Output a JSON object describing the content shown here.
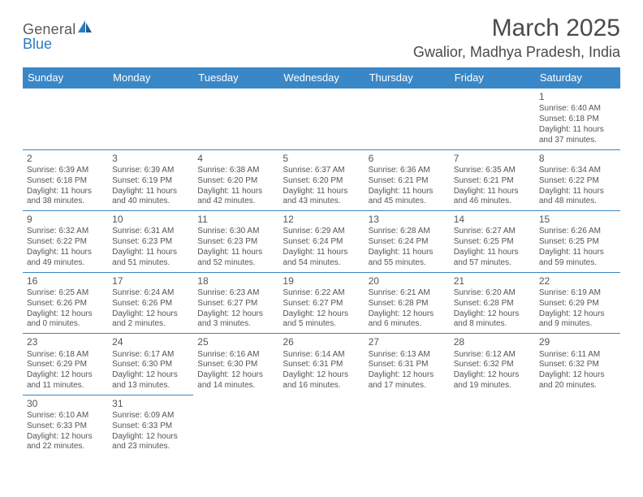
{
  "logo": {
    "text1": "General",
    "text2": "Blue"
  },
  "title": {
    "month": "March 2025",
    "location": "Gwalior, Madhya Pradesh, India"
  },
  "colors": {
    "header_bg": "#3a87c7",
    "header_text": "#ffffff",
    "border": "#3a87c7",
    "body_text": "#555555",
    "logo_gray": "#5a5a5a",
    "logo_blue": "#2b7bbf"
  },
  "weekdays": [
    "Sunday",
    "Monday",
    "Tuesday",
    "Wednesday",
    "Thursday",
    "Friday",
    "Saturday"
  ],
  "weeks": [
    [
      null,
      null,
      null,
      null,
      null,
      null,
      {
        "n": "1",
        "sr": "Sunrise: 6:40 AM",
        "ss": "Sunset: 6:18 PM",
        "dl": "Daylight: 11 hours and 37 minutes."
      }
    ],
    [
      {
        "n": "2",
        "sr": "Sunrise: 6:39 AM",
        "ss": "Sunset: 6:18 PM",
        "dl": "Daylight: 11 hours and 38 minutes."
      },
      {
        "n": "3",
        "sr": "Sunrise: 6:39 AM",
        "ss": "Sunset: 6:19 PM",
        "dl": "Daylight: 11 hours and 40 minutes."
      },
      {
        "n": "4",
        "sr": "Sunrise: 6:38 AM",
        "ss": "Sunset: 6:20 PM",
        "dl": "Daylight: 11 hours and 42 minutes."
      },
      {
        "n": "5",
        "sr": "Sunrise: 6:37 AM",
        "ss": "Sunset: 6:20 PM",
        "dl": "Daylight: 11 hours and 43 minutes."
      },
      {
        "n": "6",
        "sr": "Sunrise: 6:36 AM",
        "ss": "Sunset: 6:21 PM",
        "dl": "Daylight: 11 hours and 45 minutes."
      },
      {
        "n": "7",
        "sr": "Sunrise: 6:35 AM",
        "ss": "Sunset: 6:21 PM",
        "dl": "Daylight: 11 hours and 46 minutes."
      },
      {
        "n": "8",
        "sr": "Sunrise: 6:34 AM",
        "ss": "Sunset: 6:22 PM",
        "dl": "Daylight: 11 hours and 48 minutes."
      }
    ],
    [
      {
        "n": "9",
        "sr": "Sunrise: 6:32 AM",
        "ss": "Sunset: 6:22 PM",
        "dl": "Daylight: 11 hours and 49 minutes."
      },
      {
        "n": "10",
        "sr": "Sunrise: 6:31 AM",
        "ss": "Sunset: 6:23 PM",
        "dl": "Daylight: 11 hours and 51 minutes."
      },
      {
        "n": "11",
        "sr": "Sunrise: 6:30 AM",
        "ss": "Sunset: 6:23 PM",
        "dl": "Daylight: 11 hours and 52 minutes."
      },
      {
        "n": "12",
        "sr": "Sunrise: 6:29 AM",
        "ss": "Sunset: 6:24 PM",
        "dl": "Daylight: 11 hours and 54 minutes."
      },
      {
        "n": "13",
        "sr": "Sunrise: 6:28 AM",
        "ss": "Sunset: 6:24 PM",
        "dl": "Daylight: 11 hours and 55 minutes."
      },
      {
        "n": "14",
        "sr": "Sunrise: 6:27 AM",
        "ss": "Sunset: 6:25 PM",
        "dl": "Daylight: 11 hours and 57 minutes."
      },
      {
        "n": "15",
        "sr": "Sunrise: 6:26 AM",
        "ss": "Sunset: 6:25 PM",
        "dl": "Daylight: 11 hours and 59 minutes."
      }
    ],
    [
      {
        "n": "16",
        "sr": "Sunrise: 6:25 AM",
        "ss": "Sunset: 6:26 PM",
        "dl": "Daylight: 12 hours and 0 minutes."
      },
      {
        "n": "17",
        "sr": "Sunrise: 6:24 AM",
        "ss": "Sunset: 6:26 PM",
        "dl": "Daylight: 12 hours and 2 minutes."
      },
      {
        "n": "18",
        "sr": "Sunrise: 6:23 AM",
        "ss": "Sunset: 6:27 PM",
        "dl": "Daylight: 12 hours and 3 minutes."
      },
      {
        "n": "19",
        "sr": "Sunrise: 6:22 AM",
        "ss": "Sunset: 6:27 PM",
        "dl": "Daylight: 12 hours and 5 minutes."
      },
      {
        "n": "20",
        "sr": "Sunrise: 6:21 AM",
        "ss": "Sunset: 6:28 PM",
        "dl": "Daylight: 12 hours and 6 minutes."
      },
      {
        "n": "21",
        "sr": "Sunrise: 6:20 AM",
        "ss": "Sunset: 6:28 PM",
        "dl": "Daylight: 12 hours and 8 minutes."
      },
      {
        "n": "22",
        "sr": "Sunrise: 6:19 AM",
        "ss": "Sunset: 6:29 PM",
        "dl": "Daylight: 12 hours and 9 minutes."
      }
    ],
    [
      {
        "n": "23",
        "sr": "Sunrise: 6:18 AM",
        "ss": "Sunset: 6:29 PM",
        "dl": "Daylight: 12 hours and 11 minutes."
      },
      {
        "n": "24",
        "sr": "Sunrise: 6:17 AM",
        "ss": "Sunset: 6:30 PM",
        "dl": "Daylight: 12 hours and 13 minutes."
      },
      {
        "n": "25",
        "sr": "Sunrise: 6:16 AM",
        "ss": "Sunset: 6:30 PM",
        "dl": "Daylight: 12 hours and 14 minutes."
      },
      {
        "n": "26",
        "sr": "Sunrise: 6:14 AM",
        "ss": "Sunset: 6:31 PM",
        "dl": "Daylight: 12 hours and 16 minutes."
      },
      {
        "n": "27",
        "sr": "Sunrise: 6:13 AM",
        "ss": "Sunset: 6:31 PM",
        "dl": "Daylight: 12 hours and 17 minutes."
      },
      {
        "n": "28",
        "sr": "Sunrise: 6:12 AM",
        "ss": "Sunset: 6:32 PM",
        "dl": "Daylight: 12 hours and 19 minutes."
      },
      {
        "n": "29",
        "sr": "Sunrise: 6:11 AM",
        "ss": "Sunset: 6:32 PM",
        "dl": "Daylight: 12 hours and 20 minutes."
      }
    ],
    [
      {
        "n": "30",
        "sr": "Sunrise: 6:10 AM",
        "ss": "Sunset: 6:33 PM",
        "dl": "Daylight: 12 hours and 22 minutes."
      },
      {
        "n": "31",
        "sr": "Sunrise: 6:09 AM",
        "ss": "Sunset: 6:33 PM",
        "dl": "Daylight: 12 hours and 23 minutes."
      },
      null,
      null,
      null,
      null,
      null
    ]
  ]
}
